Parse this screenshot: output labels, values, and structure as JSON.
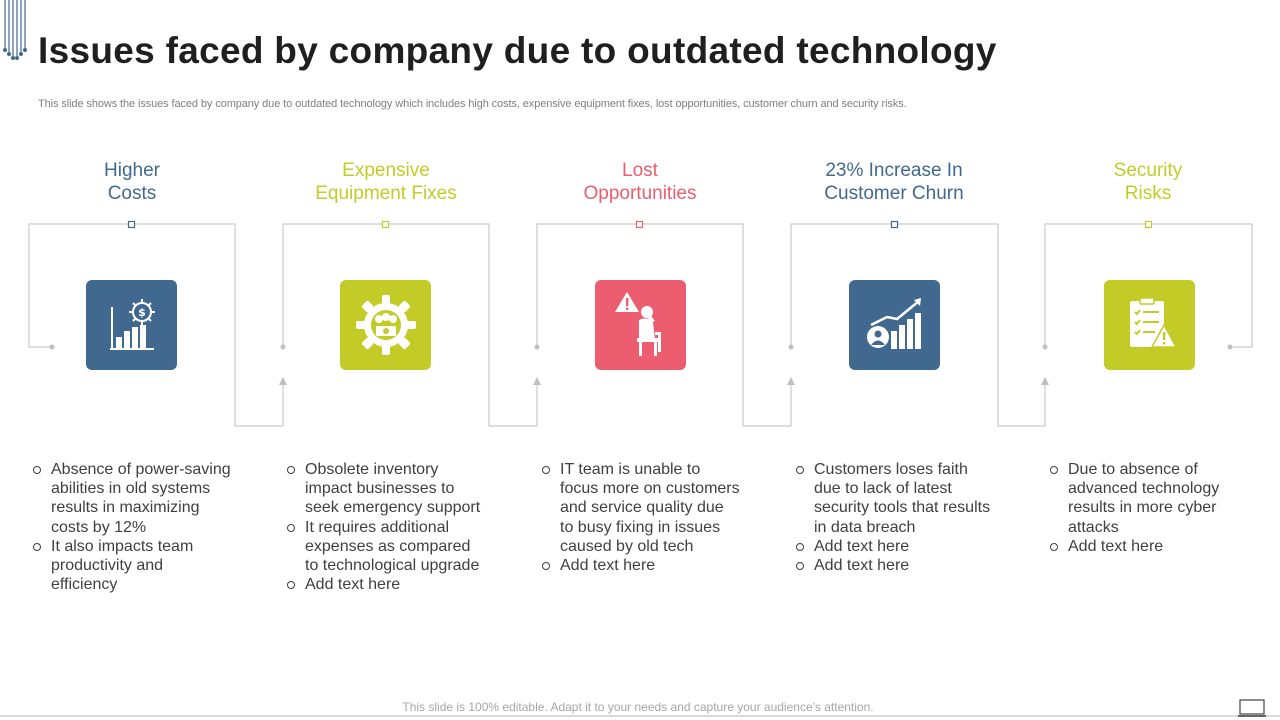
{
  "title": "Issues faced by company due to outdated technology",
  "subtitle": "This slide shows the issues faced by company due to outdated technology which includes high costs, expensive equipment fixes, lost opportunities, customer churn and security risks.",
  "colors": {
    "blue": "#41698f",
    "lime": "#c3cc27",
    "red": "#ec5d6f",
    "line": "#bfbfbf",
    "text": "#404040"
  },
  "columns": [
    {
      "heading": [
        "Higher",
        "Costs"
      ],
      "color": "#41698f",
      "icon": "cost-chart-gear-icon",
      "bullets": [
        "Absence of power-saving abilities in old systems results in maximizing costs by 12%",
        "It also impacts team productivity and efficiency"
      ]
    },
    {
      "heading": [
        "Expensive",
        "Equipment Fixes"
      ],
      "color": "#c3cc27",
      "icon": "gear-money-icon",
      "bullets": [
        "Obsolete inventory impact businesses to seek emergency support",
        "It requires additional expenses as compared to technological upgrade",
        "Add text here"
      ]
    },
    {
      "heading": [
        "Lost",
        "Opportunities"
      ],
      "color": "#ec5d6f",
      "icon": "stressed-person-warning-icon",
      "bullets": [
        "IT team is unable to focus more on customers and service quality due to busy fixing in issues caused by old tech",
        "Add text here"
      ]
    },
    {
      "heading": [
        "23% Increase In",
        "Customer Churn"
      ],
      "color": "#41698f",
      "icon": "customer-growth-chart-icon",
      "bullets": [
        "Customers loses faith due to lack of latest security tools that results in data breach",
        "Add text here",
        "Add text here"
      ]
    },
    {
      "heading": [
        "Security",
        "Risks"
      ],
      "color": "#c3cc27",
      "icon": "clipboard-warning-icon",
      "bullets": [
        "Due to absence of advanced technology results in more cyber attacks",
        "Add text here"
      ]
    }
  ],
  "footer": "This slide is 100% editable. Adapt it to your needs and capture your audience's attention."
}
